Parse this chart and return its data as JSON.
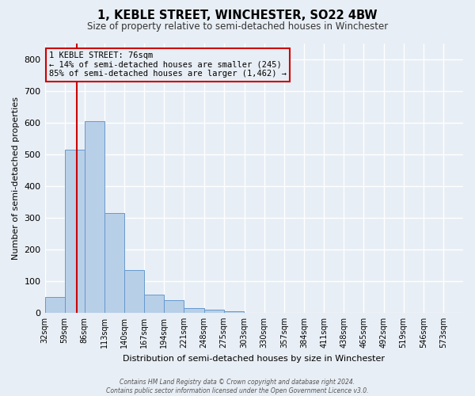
{
  "title": "1, KEBLE STREET, WINCHESTER, SO22 4BW",
  "subtitle": "Size of property relative to semi-detached houses in Winchester",
  "xlabel": "Distribution of semi-detached houses by size in Winchester",
  "ylabel": "Number of semi-detached properties",
  "bin_labels": [
    "32sqm",
    "59sqm",
    "86sqm",
    "113sqm",
    "140sqm",
    "167sqm",
    "194sqm",
    "221sqm",
    "248sqm",
    "275sqm",
    "303sqm",
    "330sqm",
    "357sqm",
    "384sqm",
    "411sqm",
    "438sqm",
    "465sqm",
    "492sqm",
    "519sqm",
    "546sqm",
    "573sqm"
  ],
  "bin_left_edges": [
    32,
    59,
    86,
    113,
    140,
    167,
    194,
    221,
    248,
    275,
    303,
    330,
    357,
    384,
    411,
    438,
    465,
    492,
    519,
    546,
    573
  ],
  "bar_heights": [
    50,
    515,
    605,
    315,
    135,
    57,
    40,
    15,
    10,
    5,
    0,
    0,
    0,
    0,
    0,
    0,
    0,
    0,
    0,
    0,
    0
  ],
  "bar_color": "#b8cfe8",
  "bar_edge_color": "#6699cc",
  "background_color": "#e8eef5",
  "grid_color": "#ffffff",
  "vline_x": 76,
  "vline_color": "#cc0000",
  "ylim": [
    0,
    850
  ],
  "yticks": [
    0,
    100,
    200,
    300,
    400,
    500,
    600,
    700,
    800
  ],
  "annotation_title": "1 KEBLE STREET: 76sqm",
  "annotation_line1": "← 14% of semi-detached houses are smaller (245)",
  "annotation_line2": "85% of semi-detached houses are larger (1,462) →",
  "annotation_box_color": "#cc0000",
  "footer_line1": "Contains HM Land Registry data © Crown copyright and database right 2024.",
  "footer_line2": "Contains public sector information licensed under the Open Government Licence v3.0."
}
